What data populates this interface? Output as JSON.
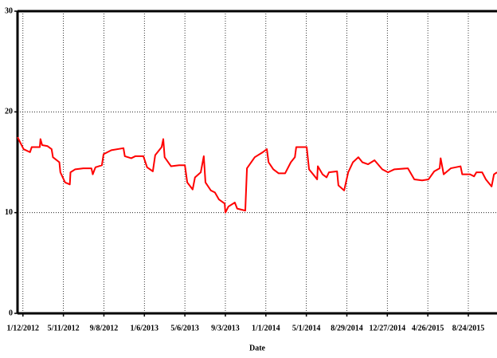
{
  "chart_data": {
    "type": "line",
    "x_label": "Date",
    "x": [
      "12/27/2011",
      "1/14/2012",
      "2/2/2012",
      "2/7/2012",
      "3/2/2012",
      "3/4/2012",
      "3/9/2012",
      "3/25/2012",
      "4/6/2012",
      "4/10/2012",
      "4/29/2012",
      "5/2/2012",
      "5/16/2012",
      "5/30/2012",
      "6/1/2012",
      "6/15/2012",
      "7/9/2012",
      "8/2/2012",
      "8/6/2012",
      "8/14/2012",
      "9/2/2012",
      "9/7/2012",
      "9/30/2012",
      "11/5/2012",
      "11/9/2012",
      "11/28/2012",
      "12/10/2012",
      "1/3/2013",
      "1/14/2013",
      "1/31/2013",
      "2/7/2013",
      "2/26/2013",
      "3/3/2013",
      "3/7/2013",
      "3/26/2013",
      "4/19/2013",
      "5/6/2013",
      "5/13/2013",
      "5/29/2013",
      "6/5/2013",
      "6/22/2013",
      "7/1/2013",
      "7/6/2013",
      "7/22/2013",
      "8/3/2013",
      "8/15/2013",
      "9/1/2013",
      "9/3/2013",
      "9/12/2013",
      "10/1/2013",
      "10/8/2013",
      "11/1/2013",
      "11/6/2013",
      "11/29/2013",
      "12/23/2013",
      "1/4/2014",
      "1/9/2014",
      "1/23/2014",
      "2/8/2014",
      "2/27/2014",
      "3/16/2014",
      "3/28/2014",
      "4/1/2014",
      "5/2/2014",
      "5/9/2014",
      "5/26/2014",
      "6/2/2014",
      "6/4/2014",
      "6/18/2014",
      "6/30/2014",
      "7/7/2014",
      "7/31/2014",
      "8/4/2014",
      "8/21/2014",
      "9/2/2014",
      "9/16/2014",
      "10/2/2014",
      "10/14/2014",
      "10/31/2014",
      "11/19/2014",
      "12/12/2014",
      "12/29/2014",
      "1/17/2015",
      "2/26/2015",
      "3/17/2015",
      "4/9/2015",
      "4/28/2015",
      "5/15/2015",
      "5/31/2015",
      "6/3/2015",
      "6/12/2015",
      "7/3/2015",
      "8/1/2015",
      "8/6/2015",
      "8/29/2015",
      "9/10/2015",
      "9/17/2015",
      "10/4/2015",
      "10/15/2015",
      "11/1/2015",
      "11/8/2015",
      "11/17/2015"
    ],
    "values": [
      17.5,
      16.3,
      16.0,
      16.5,
      16.5,
      17.3,
      16.7,
      16.6,
      16.3,
      15.5,
      15.0,
      14.0,
      13.0,
      12.8,
      14.0,
      14.3,
      14.4,
      14.4,
      13.8,
      14.5,
      14.7,
      15.8,
      16.2,
      16.4,
      15.6,
      15.4,
      15.6,
      15.6,
      14.5,
      14.1,
      15.7,
      16.5,
      17.3,
      15.5,
      14.6,
      14.7,
      14.7,
      13.0,
      12.3,
      13.5,
      14.0,
      15.6,
      13.0,
      12.2,
      12.0,
      11.3,
      10.9,
      10.0,
      10.6,
      11.0,
      10.4,
      10.2,
      14.4,
      15.5,
      16.0,
      16.3,
      15.0,
      14.3,
      13.9,
      13.9,
      15.0,
      15.5,
      16.5,
      16.5,
      14.3,
      13.6,
      13.3,
      14.6,
      13.8,
      13.5,
      14.0,
      14.1,
      12.7,
      12.2,
      14.0,
      15.0,
      15.5,
      15.0,
      14.8,
      15.2,
      14.3,
      14.0,
      14.3,
      14.4,
      13.3,
      13.2,
      13.3,
      14.1,
      14.4,
      15.4,
      13.8,
      14.4,
      14.6,
      13.8,
      13.8,
      13.6,
      14.0,
      14.0,
      13.3,
      12.6,
      13.8,
      14.0
    ],
    "color": "#ff0000",
    "xlim": [
      "12/27/2011",
      "11/17/2015"
    ],
    "xticks": [
      "1/12/2012",
      "5/11/2012",
      "9/8/2012",
      "1/6/2013",
      "5/6/2013",
      "9/3/2013",
      "1/1/2014",
      "5/1/2014",
      "8/29/2014",
      "12/27/2014",
      "4/26/2015",
      "8/24/2015"
    ],
    "ylim": [
      0,
      30
    ],
    "yticks": [
      0,
      10,
      20,
      30
    ],
    "grid": true
  }
}
